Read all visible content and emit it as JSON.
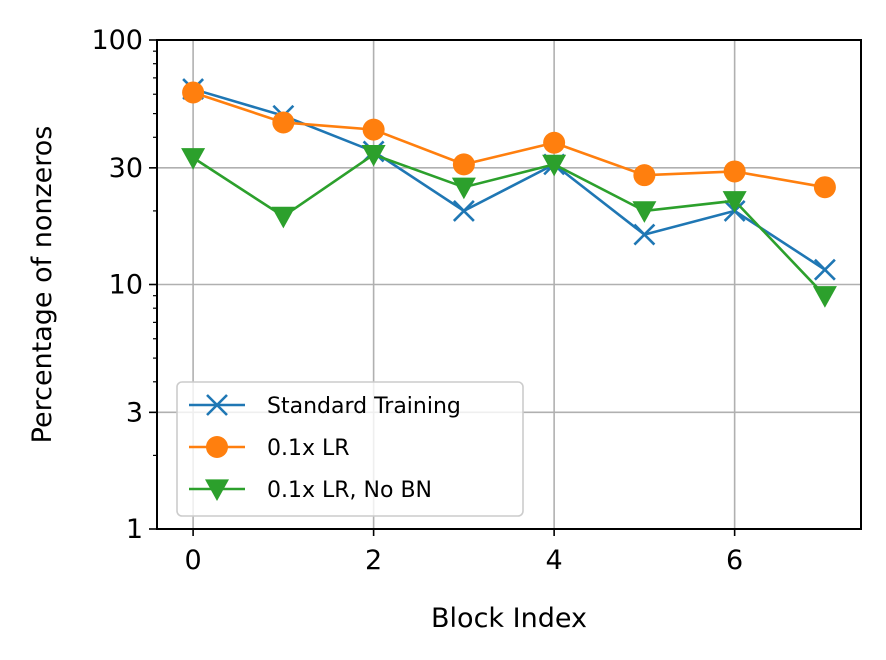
{
  "chart_data": {
    "type": "line",
    "title": "",
    "xlabel": "Block Index",
    "ylabel": "Percentage of nonzeros",
    "x": [
      0,
      1,
      2,
      3,
      4,
      5,
      6,
      7
    ],
    "xlim": [
      -0.4,
      7.4
    ],
    "ylim": [
      1,
      100
    ],
    "yscale": "log",
    "xticks": [
      0,
      2,
      4,
      6
    ],
    "xtick_labels": [
      "0",
      "2",
      "4",
      "6"
    ],
    "yticks": [
      1,
      3,
      10,
      30,
      100
    ],
    "ytick_labels": [
      "1",
      "3",
      "10",
      "30",
      "100"
    ],
    "grid": true,
    "legend_position": "lower-left",
    "series": [
      {
        "name": "Standard Training",
        "color": "#1f77b4",
        "marker": "x",
        "values": [
          63,
          49,
          35,
          20,
          31,
          16,
          20,
          11.5
        ]
      },
      {
        "name": "0.1x LR",
        "color": "#ff7f0e",
        "marker": "circle",
        "values": [
          61,
          46,
          43,
          31,
          38,
          28,
          29,
          25
        ]
      },
      {
        "name": "0.1x LR, No BN",
        "color": "#2ca02c",
        "marker": "triangle-down",
        "values": [
          33,
          19,
          34,
          25,
          31,
          20,
          22,
          9
        ]
      }
    ]
  }
}
